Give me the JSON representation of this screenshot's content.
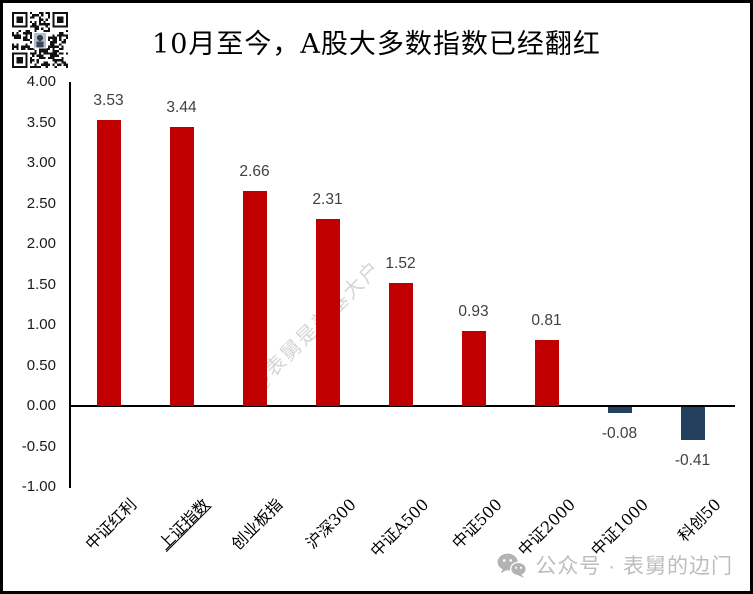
{
  "page": {
    "title": "10月至今，A股大多数指数已经翻红",
    "watermark": "@表舅是养基大户",
    "footer": {
      "label": "公众号 · 表舅的边门"
    }
  },
  "icons": {
    "qr": "qr-code",
    "wechat": "wechat-logo"
  },
  "colors": {
    "positive_bar": "#C00000",
    "negative_bar": "#25405F",
    "axis": "#000000",
    "data_label": "#404040",
    "watermark": "#D5D5D5",
    "footer_text": "#BDBDBD"
  },
  "chart_data": {
    "type": "bar",
    "title": "10月至今，A股大多数指数已经翻红",
    "categories": [
      "中证红利",
      "上证指数",
      "创业板指",
      "沪深300",
      "中证A500",
      "中证500",
      "中证2000",
      "中证1000",
      "科创50"
    ],
    "values": [
      3.53,
      3.44,
      2.66,
      2.31,
      1.52,
      0.93,
      0.81,
      -0.08,
      -0.41
    ],
    "data_labels": [
      "3.53",
      "3.44",
      "2.66",
      "2.31",
      "1.52",
      "0.93",
      "0.81",
      "-0.08",
      "-0.41"
    ],
    "underlined_categories": [
      "上证指数"
    ],
    "ylim": [
      -1.0,
      4.0
    ],
    "ytick_step": 0.5,
    "yticks": [
      "4.00",
      "3.50",
      "3.00",
      "2.50",
      "2.00",
      "1.50",
      "1.00",
      "0.50",
      "0.00",
      "-0.50",
      "-1.00"
    ],
    "grid": false,
    "legend": "none",
    "bar_color_positive": "#C00000",
    "bar_color_negative": "#25405F"
  }
}
